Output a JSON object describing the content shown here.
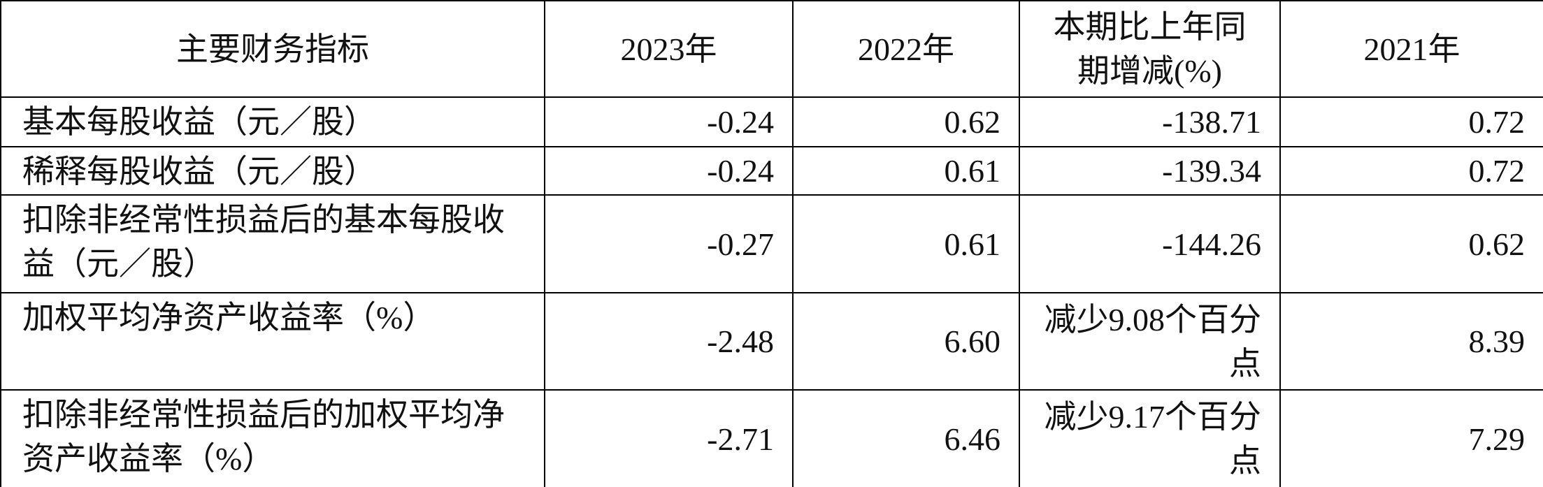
{
  "table": {
    "header": [
      "主要财务指标",
      "2023年",
      "2022年",
      "本期比上年同期增减(%)",
      "2021年"
    ],
    "rows": [
      [
        "基本每股收益（元／股）",
        "-0.24",
        "0.62",
        "-138.71",
        "0.72"
      ],
      [
        "稀释每股收益（元／股）",
        "-0.24",
        "0.61",
        "-139.34",
        "0.72"
      ],
      [
        "扣除非经常性损益后的基本每股收益（元／股）",
        "-0.27",
        "0.61",
        "-144.26",
        "0.62"
      ],
      [
        "加权平均净资产收益率（%）",
        "-2.48",
        "6.60",
        "减少9.08个百分点",
        "8.39"
      ],
      [
        "扣除非经常性损益后的加权平均净资产收益率（%）",
        "-2.71",
        "6.46",
        "减少9.17个百分点",
        "7.29"
      ]
    ]
  }
}
